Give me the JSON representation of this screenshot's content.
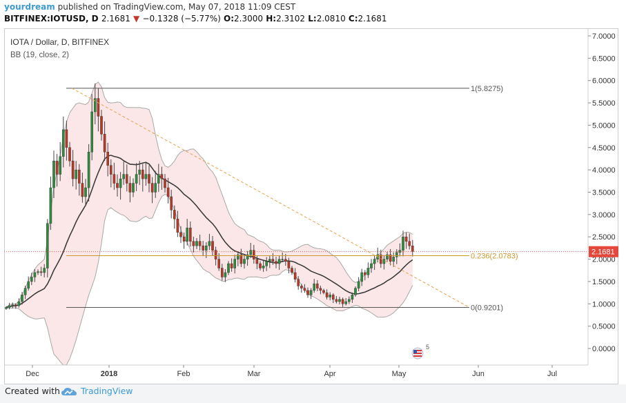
{
  "header": {
    "user": "yourdream",
    "published_text": "published on TradingView.com, May 07, 2018 11:09 CEST",
    "symbol": "BITFINEX:IOTUSD, D",
    "last": "2.1681",
    "change_arrow": "▼",
    "change": "−0.1328 (−5.77%)",
    "o_label": "O:",
    "o_value": "2.3000",
    "h_label": "H:",
    "h_value": "2.3102",
    "l_label": "L:",
    "l_value": "2.0810",
    "c_label": "C:",
    "c_value": "2.1681"
  },
  "footer": {
    "created_with": "Created with",
    "brand": "TradingView"
  },
  "colors": {
    "up": "#2e8b3e",
    "down": "#b53a2a",
    "bb_basis": "#3a3a3a",
    "bb_band": "#a8a8a8",
    "bb_fill": "#fbe7e7",
    "fib_main": "#555555",
    "fib_236": "#c79a2b",
    "trend": "#e3a24a",
    "price_tag": "#e5473a",
    "brand": "#3d9ad1"
  },
  "chart_data": {
    "type": "candlestick",
    "title": "IOTA / Dollar, D, BITFINEX",
    "indicator": "BB (19, close, 2)",
    "ylim": [
      -0.3,
      7.1
    ],
    "y_ticks": [
      "7.0000",
      "6.5000",
      "6.0000",
      "5.5000",
      "5.0000",
      "4.5000",
      "4.0000",
      "3.5000",
      "3.0000",
      "2.5000",
      "2.0000",
      "1.5000",
      "1.0000",
      "0.5000",
      "0.0000"
    ],
    "x_ticks": [
      "Dec",
      "2018",
      "Feb",
      "Mar",
      "Apr",
      "May",
      "Jun",
      "Jul"
    ],
    "last_price_label": "2.1681",
    "last_price": 2.1681,
    "fib_levels": [
      {
        "label": "1(5.8275)",
        "value": 5.8275
      },
      {
        "label": "0.236(2.0783)",
        "value": 2.0783
      },
      {
        "label": "0(0.9201)",
        "value": 0.9201
      }
    ],
    "trendline": {
      "from": {
        "date": "2017-12-20",
        "value": 5.83
      },
      "to": {
        "date": "2018-06-28",
        "value": 0.92
      }
    },
    "closes": [
      0.92,
      0.96,
      0.98,
      0.96,
      1.05,
      1.2,
      1.35,
      1.5,
      1.6,
      1.7,
      1.72,
      1.7,
      1.8,
      2.8,
      3.6,
      4.2,
      3.9,
      4.3,
      4.9,
      4.5,
      4.2,
      3.8,
      4.0,
      3.7,
      3.4,
      3.6,
      4.4,
      5.3,
      5.6,
      5.2,
      4.8,
      4.4,
      4.1,
      3.9,
      3.7,
      3.6,
      3.8,
      3.9,
      3.7,
      3.5,
      3.7,
      3.9,
      4.0,
      3.8,
      3.9,
      3.7,
      3.5,
      3.7,
      3.9,
      3.8,
      3.6,
      3.4,
      3.1,
      2.9,
      2.6,
      2.5,
      2.4,
      2.7,
      2.4,
      2.3,
      2.4,
      2.3,
      2.2,
      2.3,
      2.4,
      2.2,
      2.0,
      1.8,
      1.6,
      1.7,
      1.9,
      1.8,
      2.0,
      2.1,
      1.9,
      2.0,
      2.1,
      2.2,
      2.0,
      1.9,
      1.8,
      1.85,
      1.95,
      2.0,
      1.95,
      1.9,
      2.0,
      2.0,
      1.95,
      1.8,
      1.7,
      1.55,
      1.4,
      1.35,
      1.3,
      1.2,
      1.3,
      1.45,
      1.35,
      1.3,
      1.25,
      1.15,
      1.2,
      1.1,
      1.05,
      1.1,
      1.0,
      1.05,
      1.1,
      1.2,
      1.35,
      1.5,
      1.7,
      1.65,
      1.8,
      1.9,
      2.0,
      2.1,
      1.9,
      2.0,
      2.1,
      1.95,
      2.05,
      2.15,
      2.2,
      2.5,
      2.4,
      2.3,
      2.17
    ]
  }
}
